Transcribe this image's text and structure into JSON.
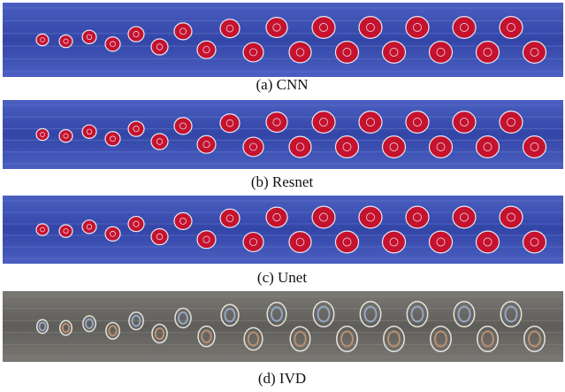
{
  "figure": {
    "panels": [
      {
        "caption": "(a) CNN"
      },
      {
        "caption": "(b) Resnet"
      },
      {
        "caption": "(c) Unet"
      },
      {
        "caption": "(d) IVD"
      }
    ]
  }
}
